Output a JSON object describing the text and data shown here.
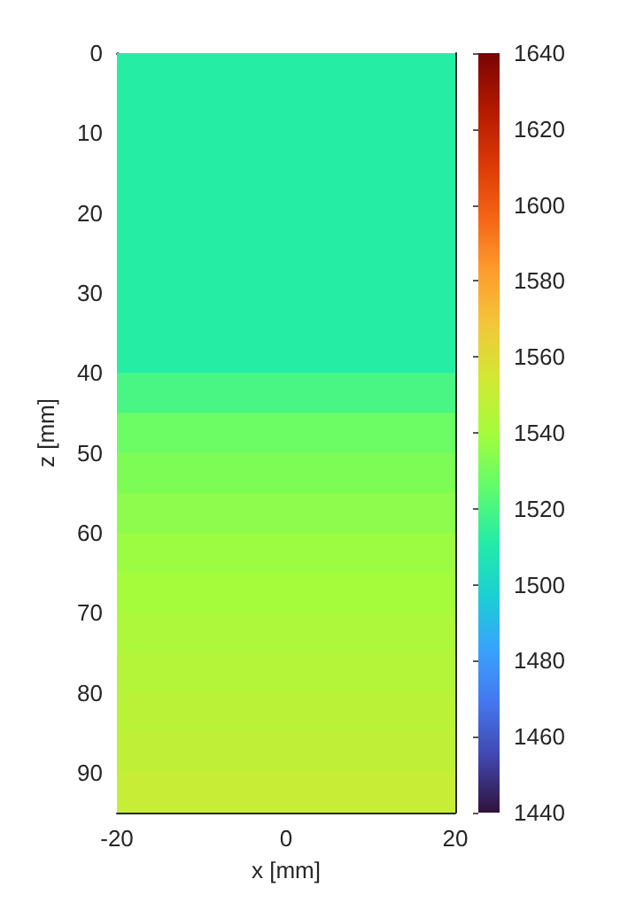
{
  "chart_data": {
    "type": "heatmap",
    "xlabel": "x [mm]",
    "ylabel": "z [mm]",
    "cells": [
      [
        1512
      ],
      [
        1512
      ],
      [
        1512
      ],
      [
        1512
      ],
      [
        1512
      ],
      [
        1512
      ],
      [
        1512
      ],
      [
        1512
      ],
      [
        1520
      ],
      [
        1528
      ],
      [
        1532
      ],
      [
        1535
      ],
      [
        1538
      ],
      [
        1540
      ],
      [
        1543
      ],
      [
        1545
      ],
      [
        1547
      ],
      [
        1549
      ],
      [
        1551
      ]
    ],
    "xlim": [
      -20,
      20
    ],
    "xticks": [
      -20,
      0,
      20
    ],
    "ylim": [
      95,
      0
    ],
    "yticks": [
      0,
      10,
      20,
      30,
      40,
      50,
      60,
      70,
      80,
      90
    ],
    "clim": [
      1440,
      1640
    ],
    "cticks": [
      1440,
      1460,
      1480,
      1500,
      1520,
      1540,
      1560,
      1580,
      1600,
      1620,
      1640
    ]
  }
}
